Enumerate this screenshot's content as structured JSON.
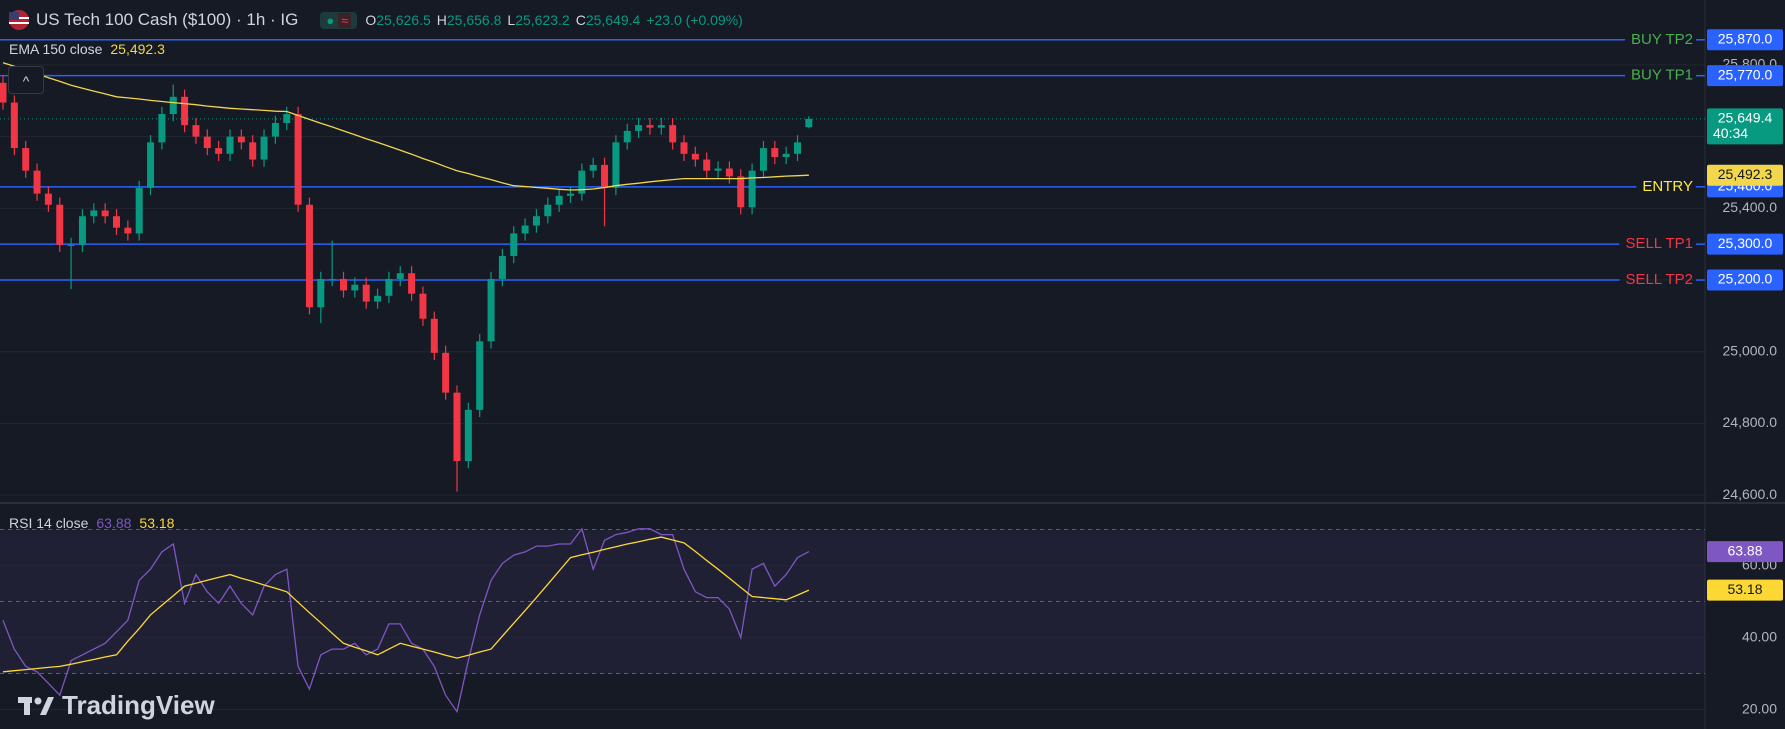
{
  "header": {
    "symbol": "US Tech 100 Cash ($100) · 1h · IG",
    "ohlc": [
      {
        "key": "O",
        "value": "25,626.5"
      },
      {
        "key": "H",
        "value": "25,656.8"
      },
      {
        "key": "L",
        "value": "25,623.2"
      },
      {
        "key": "C",
        "value": "25,649.4"
      }
    ],
    "change": "+23.0 (+0.09%)"
  },
  "watermark": "TradingView",
  "chart_data": [
    {
      "type": "candlestick",
      "ylim": [
        24581,
        25981
      ],
      "yticks": [
        {
          "value": 24600,
          "label": "24,600.0"
        },
        {
          "value": 24800,
          "label": "24,800.0"
        },
        {
          "value": 25000,
          "label": "25,000.0"
        },
        {
          "value": 25200,
          "label": "25,200.0"
        },
        {
          "value": 25400,
          "label": "25,400.0"
        },
        {
          "value": 25600,
          "label": "25,600.0"
        },
        {
          "value": 25800,
          "label": "25,800.0"
        }
      ],
      "grid": true,
      "up_color": "#089981",
      "down_color": "#f23645",
      "open": [
        25750,
        25695,
        25568,
        25505,
        25441,
        25410,
        25298,
        25298,
        25378,
        25394,
        25378,
        25346,
        25330,
        25457,
        25584,
        25663,
        25711,
        25632,
        25600,
        25568,
        25552,
        25600,
        25584,
        25536,
        25600,
        25638,
        25663,
        25410,
        25124,
        25203,
        25203,
        25171,
        25187,
        25140,
        25156,
        25203,
        25219,
        25162,
        25092,
        24997,
        24886,
        24695,
        24838,
        25029,
        25203,
        25267,
        25330,
        25352,
        25378,
        25410,
        25435,
        25441,
        25505,
        25521,
        25457,
        25584,
        25616,
        25632,
        25625,
        25632,
        25584,
        25552,
        25536,
        25505,
        25511,
        25489,
        25403,
        25505,
        25568,
        25543,
        25552,
        25626.5
      ],
      "high": [
        25770,
        25715,
        25588,
        25525,
        25461,
        25430,
        25318,
        25398,
        25414,
        25414,
        25398,
        25366,
        25477,
        25604,
        25683,
        25745,
        25731,
        25652,
        25620,
        25588,
        25620,
        25620,
        25604,
        25620,
        25658,
        25683,
        25683,
        25430,
        25223,
        25310,
        25223,
        25207,
        25207,
        25176,
        25223,
        25239,
        25239,
        25182,
        25112,
        25017,
        24906,
        24858,
        25049,
        25223,
        25287,
        25350,
        25372,
        25398,
        25430,
        25455,
        25461,
        25525,
        25541,
        25541,
        25604,
        25636,
        25652,
        25652,
        25652,
        25652,
        25604,
        25572,
        25556,
        25531,
        25531,
        25509,
        25525,
        25588,
        25588,
        25572,
        25604,
        25656.8
      ],
      "low": [
        25675,
        25548,
        25485,
        25421,
        25390,
        25278,
        25175,
        25278,
        25358,
        25358,
        25326,
        25310,
        25310,
        25437,
        25564,
        25643,
        25612,
        25580,
        25548,
        25532,
        25532,
        25564,
        25516,
        25516,
        25580,
        25618,
        25390,
        25104,
        25080,
        25183,
        25151,
        25151,
        25120,
        25120,
        25136,
        25183,
        25142,
        25072,
        24977,
        24866,
        24610,
        24675,
        24818,
        25009,
        25183,
        25247,
        25310,
        25332,
        25358,
        25390,
        25415,
        25421,
        25485,
        25350,
        25437,
        25564,
        25596,
        25605,
        25605,
        25564,
        25532,
        25516,
        25485,
        25485,
        25469,
        25383,
        25383,
        25485,
        25523,
        25523,
        25532,
        25623.2
      ],
      "close": [
        25695,
        25568,
        25505,
        25441,
        25410,
        25298,
        25298,
        25378,
        25394,
        25378,
        25346,
        25330,
        25457,
        25584,
        25663,
        25711,
        25632,
        25600,
        25568,
        25552,
        25600,
        25584,
        25536,
        25600,
        25638,
        25663,
        25410,
        25124,
        25203,
        25203,
        25171,
        25187,
        25140,
        25156,
        25203,
        25219,
        25162,
        25092,
        24997,
        24886,
        24695,
        24838,
        25029,
        25203,
        25267,
        25330,
        25352,
        25378,
        25410,
        25435,
        25441,
        25505,
        25521,
        25457,
        25584,
        25616,
        25632,
        25625,
        25632,
        25584,
        25552,
        25536,
        25505,
        25511,
        25489,
        25403,
        25505,
        25568,
        25543,
        25552,
        25584,
        25649.4
      ],
      "last_price": {
        "value": 25649.4,
        "label": "25,649.4",
        "countdown": "40:34",
        "color": "#089981"
      },
      "series": [
        {
          "name": "EMA 150 close",
          "color": "#f2d64b",
          "value_label": "25,492.3",
          "values": [
            25806,
            25796,
            25786,
            25775,
            25764,
            25754,
            25743,
            25735,
            25727,
            25719,
            25711,
            25708,
            25705,
            25701,
            25698,
            25695,
            25692,
            25689,
            25685,
            25682,
            25679,
            25677,
            25675,
            25673,
            25671,
            25670,
            25659,
            25648,
            25637,
            25627,
            25616,
            25605,
            25594,
            25584,
            25573,
            25562,
            25551,
            25539,
            25528,
            25516,
            25505,
            25497,
            25488,
            25480,
            25471,
            25463,
            25461,
            25458,
            25456,
            25453,
            25451,
            25452,
            25454,
            25458,
            25463,
            25467,
            25470,
            25474,
            25477,
            25480,
            25483,
            25483,
            25483,
            25483,
            25483,
            25483,
            25485,
            25486,
            25488,
            25490,
            25491,
            25492.3
          ]
        }
      ],
      "levels": [
        {
          "name": "BUY TP2",
          "value": 25870,
          "label": "25,870.0",
          "color": "#4caf50"
        },
        {
          "name": "BUY TP1",
          "value": 25770,
          "label": "25,770.0",
          "color": "#4caf50"
        },
        {
          "name": "ENTRY",
          "value": 25460,
          "label": "25,460.0",
          "color": "#ffeb3b"
        },
        {
          "name": "SELL TP1",
          "value": 25300,
          "label": "25,300.0",
          "color": "#f23645"
        },
        {
          "name": "SELL TP2",
          "value": 25200,
          "label": "25,200.0",
          "color": "#f23645"
        }
      ],
      "level_line_color": "#2962ff"
    },
    {
      "type": "line",
      "title": "RSI 14 close",
      "ylim": [
        14.6,
        77.1
      ],
      "yticks": [
        {
          "value": 20,
          "label": "20.00"
        },
        {
          "value": 40,
          "label": "40.00"
        },
        {
          "value": 60,
          "label": "60.00"
        }
      ],
      "band": [
        30,
        70
      ],
      "midline": 50,
      "series": [
        {
          "color": "#7e57c2",
          "value_label": "63.88",
          "values": [
            44.8,
            36.8,
            32,
            30.5,
            27.3,
            24,
            33.6,
            35.2,
            36.8,
            38.4,
            41.6,
            44.8,
            55.9,
            59,
            63.8,
            66,
            49.5,
            57.5,
            52.7,
            49.5,
            54.3,
            49.5,
            46.3,
            54.3,
            57.5,
            59,
            32,
            25.7,
            35.2,
            36.8,
            36.8,
            38.4,
            35.2,
            36.8,
            43.8,
            43.8,
            38.4,
            36.8,
            32,
            24,
            19.4,
            33.6,
            46.3,
            55.9,
            60.6,
            62.9,
            63.8,
            65.4,
            65.4,
            66,
            66,
            70.2,
            59,
            67,
            68.6,
            69.2,
            70.2,
            70.2,
            68.6,
            68.6,
            59,
            52.7,
            51.1,
            51.1,
            47.9,
            40,
            59,
            60.6,
            54.3,
            57.5,
            62.2,
            63.88
          ]
        },
        {
          "color": "#fdd835",
          "value_label": "53.18",
          "values": [
            30.5,
            30.8,
            31.1,
            31.4,
            31.7,
            32,
            32.6,
            33.3,
            33.9,
            34.6,
            35.2,
            39,
            42.5,
            46.3,
            49,
            51.6,
            54.3,
            55.1,
            55.9,
            56.7,
            57.5,
            56.5,
            55.6,
            54.6,
            53.7,
            52.7,
            49.8,
            46.9,
            44.1,
            41.2,
            38.4,
            37.3,
            36.3,
            35.2,
            36.8,
            38.4,
            37.6,
            36.8,
            36,
            35.1,
            34.3,
            35.1,
            36,
            36.8,
            40.4,
            44,
            47.5,
            51.1,
            54.8,
            58.5,
            62.2,
            63,
            63.7,
            64.5,
            65.2,
            66,
            66.6,
            67.3,
            67.9,
            67.1,
            66.3,
            63.9,
            61.4,
            59,
            56.5,
            53.9,
            51.4,
            51.1,
            50.8,
            50.5,
            51.8,
            53.18
          ]
        }
      ]
    }
  ]
}
